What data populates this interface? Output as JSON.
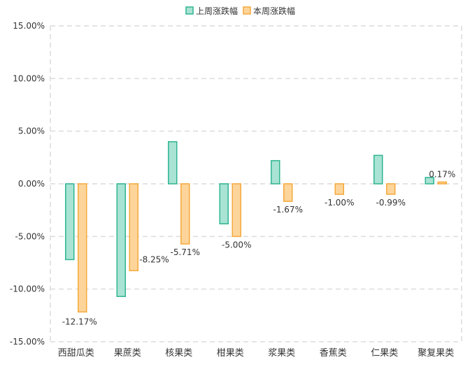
{
  "chart_data": {
    "type": "bar",
    "categories": [
      "西甜瓜类",
      "果蔗类",
      "核果类",
      "柑果类",
      "浆果类",
      "香蕉类",
      "仁果类",
      "聚复果类"
    ],
    "series": [
      {
        "name": "上周涨跌幅",
        "values": [
          -7.2,
          -10.7,
          4.0,
          -3.8,
          2.2,
          0.0,
          2.7,
          0.6
        ],
        "data_labels": [
          null,
          null,
          null,
          null,
          null,
          null,
          null,
          null
        ]
      },
      {
        "name": "本周涨跌幅",
        "values": [
          -12.17,
          -8.25,
          -5.71,
          -5.0,
          -1.67,
          -1.0,
          -0.99,
          0.17
        ],
        "data_labels": [
          "-12.17%",
          "-8.25%",
          "-5.71%",
          "-5.00%",
          "-1.67%",
          "-1.00%",
          "-0.99%",
          "0.17%"
        ]
      }
    ],
    "ylim": [
      -15,
      15
    ],
    "yticks": [
      15,
      10,
      5,
      0,
      -5,
      -10,
      -15
    ],
    "ytick_labels": [
      "15.00%",
      "10.00%",
      "5.00%",
      "0.00%",
      "-5.00%",
      "-10.00%",
      "-15.00%"
    ],
    "grid": true,
    "legend_position": "top-center",
    "colors": {
      "series": [
        {
          "fill": "#a8e3d3",
          "stroke": "#2fb592"
        },
        {
          "fill": "#fdd59b",
          "stroke": "#f5a93b"
        }
      ],
      "grid": "#dcdcdc",
      "text": "#333333"
    }
  }
}
